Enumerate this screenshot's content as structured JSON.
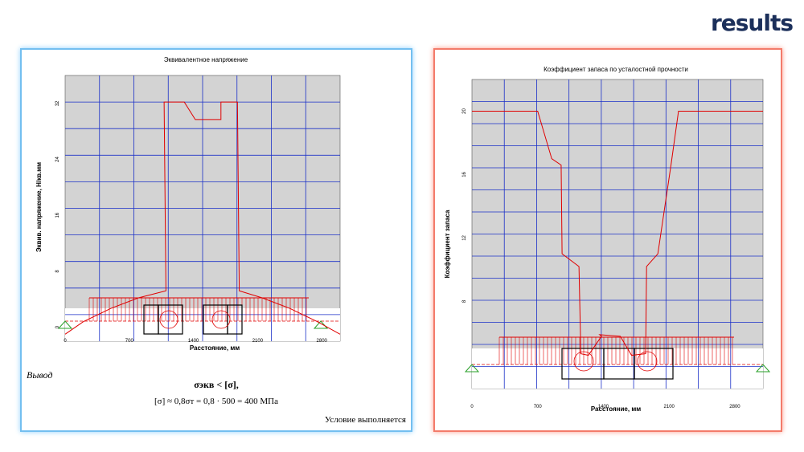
{
  "header": {
    "tag": "results"
  },
  "left": {
    "conclusion_label": "Вывод",
    "formula_line1": "σэкв < [σ],",
    "formula_line2": "[σ] ≈ 0,8σт = 0,8 · 500 = 400 МПа",
    "status": "Условие выполняется"
  },
  "chart_data": [
    {
      "type": "line",
      "title": "Эквивалентное напряжение",
      "xlabel": "Расстояние, мм",
      "ylabel": "Эквив. напряжение, Н/кв.мм",
      "xlim": [
        0,
        3000
      ],
      "ylim": [
        -2,
        36
      ],
      "x_ticks": [
        "0",
        "700",
        "1400",
        "2100",
        "2800"
      ],
      "x_tick_values": [
        0,
        700,
        1400,
        2100,
        2800
      ],
      "y_ticks": [
        "0",
        "8",
        "16",
        "24",
        "32"
      ],
      "y_tick_values": [
        0,
        8,
        16,
        24,
        32
      ],
      "grid": true,
      "series": [
        {
          "name": "σэкв",
          "color": "#e00000",
          "x": [
            0,
            200,
            500,
            800,
            1100,
            1080,
            1300,
            1420,
            1420,
            1700,
            1700,
            1880,
            1900,
            2150,
            2450,
            2750,
            3000
          ],
          "y": [
            -1,
            0.8,
            2.7,
            4.2,
            5.2,
            32.2,
            32.2,
            29.7,
            29.7,
            29.7,
            32.2,
            32.2,
            5.2,
            4.2,
            2.7,
            0.8,
            -1
          ]
        }
      ]
    },
    {
      "type": "line",
      "title": "Коэффициент запаса по усталостной прочности",
      "xlabel": "Расстояние, мм",
      "ylabel": "Коэффициент запаса",
      "xlim": [
        0,
        3100
      ],
      "ylim": [
        2.5,
        22
      ],
      "x_ticks": [
        "0",
        "700",
        "1400",
        "2100",
        "2800"
      ],
      "x_tick_values": [
        0,
        700,
        1400,
        2100,
        2800
      ],
      "y_ticks": [
        "8",
        "12",
        "16",
        "20"
      ],
      "y_tick_values": [
        8,
        12,
        16,
        20
      ],
      "grid": true,
      "series": [
        {
          "name": "Коэффициент запаса",
          "color": "#e00000",
          "x": [
            0,
            700,
            850,
            950,
            960,
            1140,
            1160,
            1240,
            1380,
            1360,
            1580,
            1700,
            1850,
            1860,
            1980,
            2120,
            2200,
            3100
          ],
          "y": [
            20,
            20,
            17,
            16.6,
            11,
            10.2,
            4.7,
            4.6,
            5.8,
            5.9,
            5.8,
            4.6,
            4.7,
            10.2,
            11,
            16.6,
            20,
            20
          ]
        }
      ]
    }
  ]
}
